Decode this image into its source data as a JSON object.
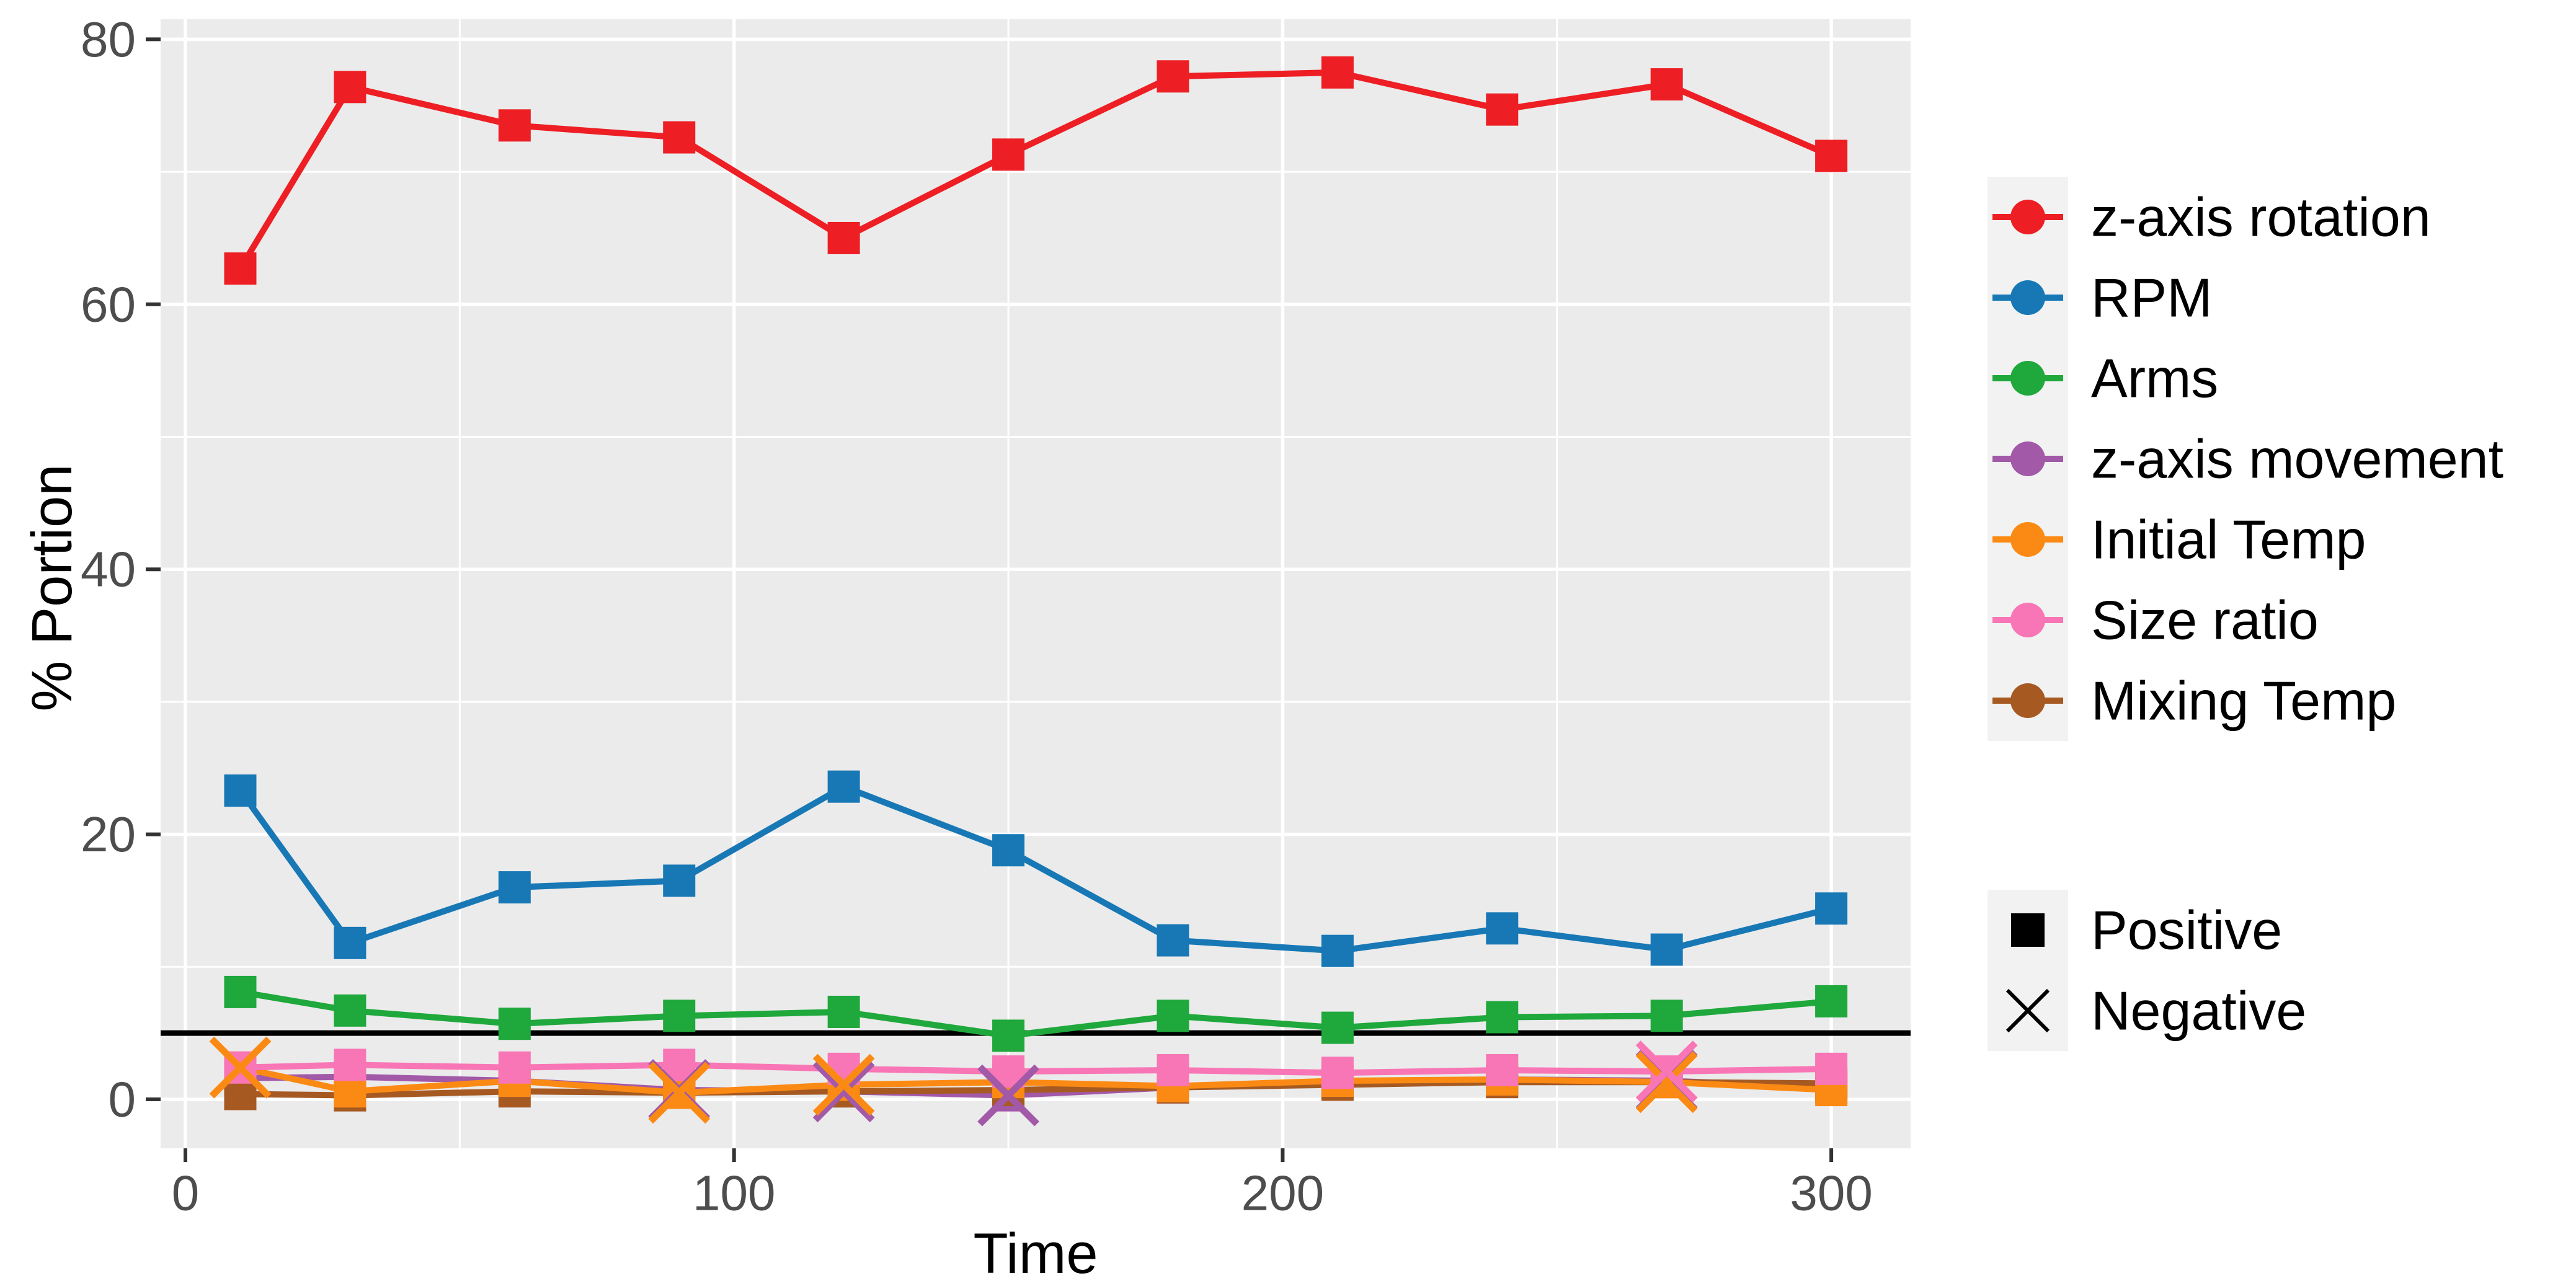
{
  "chart_data": {
    "type": "line",
    "title": "",
    "xlabel": "Time",
    "ylabel": "% Portion",
    "x": [
      10,
      30,
      60,
      90,
      120,
      150,
      180,
      210,
      240,
      270,
      300
    ],
    "x_tick_labels": [
      "0",
      "100",
      "200",
      "300"
    ],
    "x_tick_values": [
      0,
      100,
      200,
      300
    ],
    "x_minor_gridlines": [
      50,
      150,
      250
    ],
    "y_tick_labels": [
      "0",
      "20",
      "40",
      "60",
      "80"
    ],
    "y_tick_values": [
      0,
      20,
      40,
      60,
      80
    ],
    "y_minor_gridlines": [
      10,
      30,
      50,
      70
    ],
    "xlim": [
      -4.5,
      314.5
    ],
    "ylim": [
      -3.7,
      81.5
    ],
    "grid": "on",
    "panel_background": "#EBEBEB",
    "gridline_color": "#FFFFFF",
    "axis_text_color": "#4D4D4D",
    "tick_mark_color": "#333333",
    "reference_line": {
      "y": 5,
      "color": "#000000",
      "meaning": "threshold line"
    },
    "legend_position": "right",
    "legend_key_background": "#F2F2F2",
    "series": [
      {
        "name": "z-axis rotation",
        "color": "#ED1F24",
        "values": [
          62.7,
          76.4,
          73.5,
          72.6,
          65.0,
          71.3,
          77.2,
          77.5,
          74.7,
          76.6,
          71.2
        ],
        "signs": [
          "+",
          "+",
          "+",
          "+",
          "+",
          "+",
          "+",
          "+",
          "+",
          "+",
          "+"
        ]
      },
      {
        "name": "RPM",
        "color": "#1878B5",
        "values": [
          23.3,
          11.8,
          16.0,
          16.5,
          23.6,
          18.8,
          12.0,
          11.2,
          12.9,
          11.3,
          14.4
        ],
        "signs": [
          "+",
          "+",
          "+",
          "+",
          "+",
          "+",
          "+",
          "+",
          "+",
          "+",
          "+"
        ]
      },
      {
        "name": "Arms",
        "color": "#1FA83C",
        "values": [
          8.1,
          6.7,
          5.7,
          6.3,
          6.6,
          4.8,
          6.3,
          5.4,
          6.2,
          6.3,
          7.4
        ],
        "signs": [
          "+",
          "+",
          "+",
          "+",
          "+",
          "+",
          "+",
          "+",
          "+",
          "+",
          "+"
        ]
      },
      {
        "name": "z-axis movement",
        "color": "#A259A8",
        "values": [
          1.6,
          1.7,
          1.4,
          0.7,
          0.6,
          0.3,
          0.9,
          1.2,
          1.5,
          1.4,
          0.9
        ],
        "signs": [
          "+",
          "+",
          "+",
          "-",
          "-",
          "-",
          "+",
          "+",
          "+",
          "-",
          "+"
        ]
      },
      {
        "name": "Initial Temp",
        "color": "#FB8A14",
        "values": [
          2.4,
          0.6,
          1.4,
          0.5,
          1.1,
          1.3,
          1.0,
          1.4,
          1.5,
          1.3,
          0.7
        ],
        "signs": [
          "-",
          "+",
          "+",
          "-",
          "-",
          "+",
          "+",
          "+",
          "+",
          "-",
          "+"
        ]
      },
      {
        "name": "Size ratio",
        "color": "#F876B6",
        "values": [
          2.4,
          2.6,
          2.4,
          2.6,
          2.3,
          2.1,
          2.2,
          2.0,
          2.2,
          2.1,
          2.3
        ],
        "signs": [
          "+",
          "+",
          "+",
          "+",
          "+",
          "+",
          "+",
          "+",
          "+",
          "-",
          "+"
        ]
      },
      {
        "name": "Mixing Temp",
        "color": "#A65A22",
        "values": [
          0.4,
          0.3,
          0.6,
          0.5,
          0.6,
          0.7,
          0.9,
          1.1,
          1.3,
          1.3,
          1.2
        ],
        "signs": [
          "+",
          "+",
          "+",
          "+",
          "+",
          "+",
          "+",
          "+",
          "+",
          "+",
          "+"
        ]
      }
    ],
    "shape_legend": [
      {
        "label": "Positive",
        "shape": "square",
        "color": "#000000"
      },
      {
        "label": "Negative",
        "shape": "x",
        "color": "#000000"
      }
    ]
  }
}
